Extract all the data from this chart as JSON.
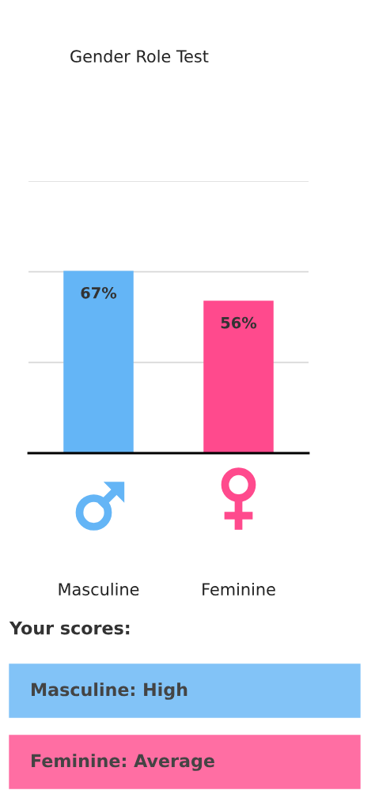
{
  "chart_data": {
    "type": "bar",
    "title": "Gender Role Test",
    "categories": [
      "Masculine",
      "Feminine"
    ],
    "values": [
      67,
      56
    ],
    "colors": [
      "#64b5f6",
      "#ff4a8d"
    ],
    "value_labels": [
      "67%",
      "56%"
    ],
    "ylim": [
      0,
      100
    ],
    "yticks": [
      {
        "value": 33.3,
        "label": null
      },
      {
        "value": 66.7,
        "label": null
      },
      {
        "value": 100,
        "label": null
      }
    ],
    "grid": "y",
    "tick_labels": "x",
    "annotations": [
      "Your scores:",
      "Masculine: High",
      "Feminine: Average"
    ]
  }
}
